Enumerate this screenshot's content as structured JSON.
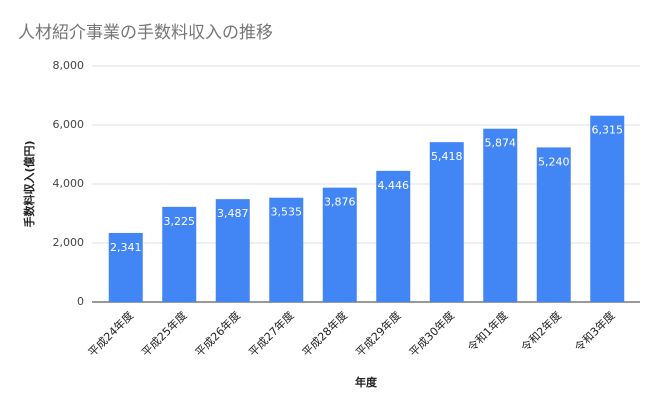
{
  "chart_data": {
    "type": "bar",
    "title": "人材紹介事業の手数料収入の推移",
    "x_label": "年度",
    "y_label": "手数料収入(億円)",
    "categories": [
      "平成24年度",
      "平成25年度",
      "平成26年度",
      "平成27年度",
      "平成28年度",
      "平成29年度",
      "平成30年度",
      "令和1年度",
      "令和2年度",
      "令和3年度"
    ],
    "values": [
      2341,
      3225,
      3487,
      3535,
      3876,
      4446,
      5418,
      5874,
      5240,
      6315
    ],
    "value_labels": [
      "2,341",
      "3,225",
      "3,487",
      "3,535",
      "3,876",
      "4,446",
      "5,418",
      "5,874",
      "5,240",
      "6,315"
    ],
    "color": "#4285f4",
    "ylim": [
      0,
      8000
    ],
    "yticks": [
      0,
      {
        "value": 2000,
        "label": "2,000"
      },
      {
        "value": 4000,
        "label": "4,000"
      },
      {
        "value": 6000,
        "label": "6,000"
      },
      {
        "value": 8000,
        "label": "8,000"
      }
    ],
    "grid": true
  }
}
